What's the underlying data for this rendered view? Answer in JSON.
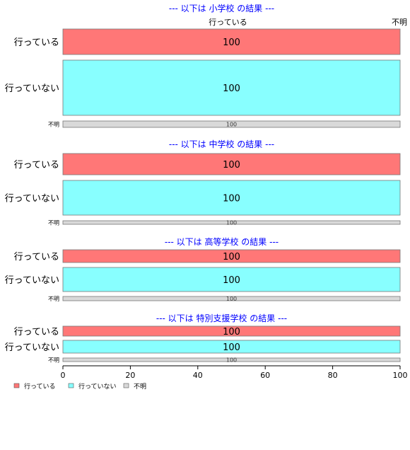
{
  "chart_data": {
    "type": "bar",
    "orientation": "horizontal",
    "stacked": true,
    "xlim": [
      0,
      100
    ],
    "xticks": [
      "0",
      "20",
      "40",
      "60",
      "80",
      "100"
    ],
    "top_labels": [
      "行っている",
      "不明"
    ],
    "grid": false,
    "legend_position": "bottom-left",
    "colors": {
      "行っている": "#ff7777",
      "行っていない": "#88ffff",
      "不明": "#d9d9d9"
    },
    "legend": [
      "行っている",
      "行っていない",
      "不明"
    ],
    "panels": [
      {
        "title": "--- 以下は 小学校 の結果 ---",
        "categories": [
          "行っている",
          "行っていない",
          "不明"
        ],
        "values": [
          100,
          100,
          100
        ],
        "value_labels": [
          "100",
          "100",
          "100"
        ]
      },
      {
        "title": "--- 以下は 中学校 の結果 ---",
        "categories": [
          "行っている",
          "行っていない",
          "不明"
        ],
        "values": [
          100,
          100,
          100
        ],
        "value_labels": [
          "100",
          "100",
          "100"
        ]
      },
      {
        "title": "--- 以下は 高等学校 の結果 ---",
        "categories": [
          "行っている",
          "行っていない",
          "不明"
        ],
        "values": [
          100,
          100,
          100
        ],
        "value_labels": [
          "100",
          "100",
          "100"
        ]
      },
      {
        "title": "--- 以下は 特別支援学校 の結果 ---",
        "categories": [
          "行っている",
          "行っていない",
          "不明"
        ],
        "values": [
          100,
          100,
          100
        ],
        "value_labels": [
          "100",
          "100",
          "100"
        ]
      }
    ]
  }
}
